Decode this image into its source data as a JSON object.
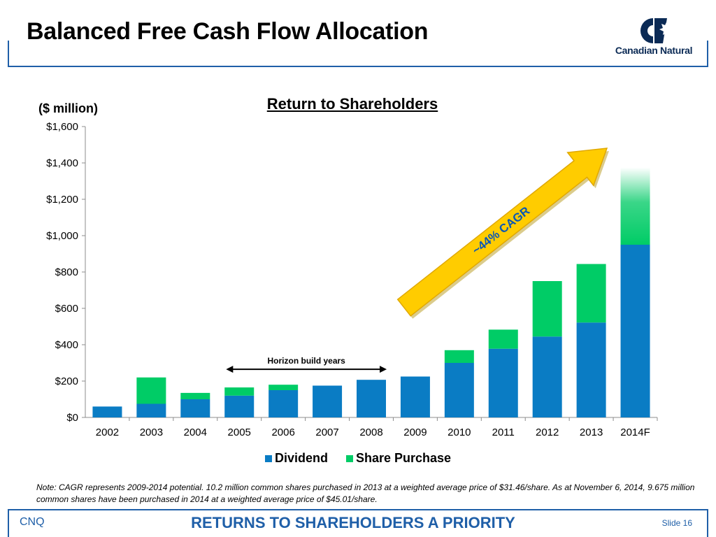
{
  "slide": {
    "title": "Balanced Free Cash Flow Allocation",
    "logo_text": "Canadian Natural",
    "footer_left": "CNQ",
    "footer_center": "RETURNS TO SHAREHOLDERS A PRIORITY",
    "footer_right": "Slide 16",
    "note": "Note: CAGR represents 2009-2014 potential. 10.2 million common shares purchased in 2013 at a weighted average price of $31.46/share. As at November 6, 2014, 9.675 million common shares have been purchased in 2014 at a weighted average price of $45.01/share."
  },
  "colors": {
    "dividend": "#0a7cc4",
    "share_purchase": "#00cc66",
    "arrow": "#ffcc00",
    "frame": "#1f5fa8"
  },
  "chart_data": {
    "type": "bar",
    "stacked": true,
    "title": "Return to Shareholders",
    "ylabel": "($ million)",
    "ylim": [
      0,
      1600
    ],
    "yticks": [
      "$0",
      "$200",
      "$400",
      "$600",
      "$800",
      "$1,000",
      "$1,200",
      "$1,400",
      "$1,600"
    ],
    "categories": [
      "2002",
      "2003",
      "2004",
      "2005",
      "2006",
      "2007",
      "2008",
      "2009",
      "2010",
      "2011",
      "2012",
      "2013",
      "2014F"
    ],
    "series": [
      {
        "name": "Dividend",
        "values": [
          60,
          75,
          100,
          120,
          150,
          175,
          207,
          225,
          300,
          378,
          445,
          522,
          950
        ]
      },
      {
        "name": "Share Purchase",
        "values": [
          0,
          145,
          35,
          45,
          30,
          0,
          0,
          0,
          70,
          105,
          305,
          322,
          425
        ]
      }
    ],
    "annotations": {
      "horizon": "Horizon build years",
      "cagr": "~44% CAGR"
    },
    "legend_position": "bottom",
    "grid": false
  }
}
